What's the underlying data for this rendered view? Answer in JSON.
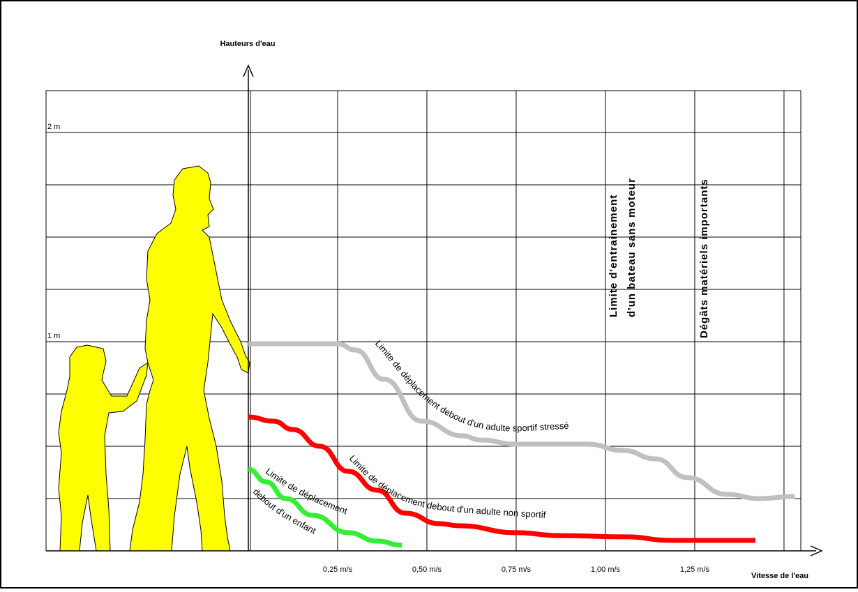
{
  "chart_data": {
    "type": "line",
    "y_label": "Hauteurs d'eau",
    "x_label": "Vitesse de l'eau",
    "xlim": [
      0,
      1.547
    ],
    "ylim": [
      0,
      2.2
    ],
    "xticks": [
      {
        "value": 0.25,
        "label": "0,25 m/s"
      },
      {
        "value": 0.5,
        "label": "0,50 m/s"
      },
      {
        "value": 0.75,
        "label": "0,75 m/s"
      },
      {
        "value": 1.0,
        "label": "1,00 m/s"
      },
      {
        "value": 1.25,
        "label": "1,25 m/s"
      }
    ],
    "yticks": [
      {
        "value": 1,
        "label": "1 m"
      },
      {
        "value": 2,
        "label": "2 m"
      }
    ],
    "xgrid": [
      0,
      0.25,
      0.5,
      0.75,
      1.0,
      1.25,
      1.5
    ],
    "ygrid": [
      0,
      0.25,
      0.5,
      0.75,
      1.0,
      1.25,
      1.5,
      1.75,
      2.0,
      2.2
    ],
    "series": [
      {
        "label_lines": [
          "Limite de déplacement debout d'un adulte sportif stressé"
        ],
        "color": "#c0c0c0",
        "x": [
          0,
          0.25,
          0.3,
          0.38,
          0.486,
          0.6,
          0.65,
          0.75,
          0.95,
          1.05,
          1.14,
          1.23,
          1.34,
          1.43,
          1.53
        ],
        "values": [
          0.99,
          0.99,
          0.96,
          0.82,
          0.62,
          0.55,
          0.53,
          0.51,
          0.51,
          0.48,
          0.44,
          0.35,
          0.27,
          0.25,
          0.26
        ]
      },
      {
        "label_lines": [
          "Limite de déplacement debout d'un adulte non sportif"
        ],
        "color": "#ff0000",
        "x": [
          0,
          0.07,
          0.125,
          0.2,
          0.28,
          0.36,
          0.44,
          0.535,
          0.59,
          0.75,
          0.87,
          1.06,
          1.18,
          1.42
        ],
        "values": [
          0.64,
          0.62,
          0.58,
          0.5,
          0.38,
          0.29,
          0.18,
          0.13,
          0.12,
          0.087,
          0.073,
          0.067,
          0.05,
          0.05
        ]
      },
      {
        "label_lines": [
          "Limite de déplacement",
          "debout d'un enfant"
        ],
        "color": "#33ee33",
        "x": [
          0,
          0.05,
          0.105,
          0.18,
          0.28,
          0.36,
          0.43
        ],
        "values": [
          0.39,
          0.33,
          0.25,
          0.17,
          0.087,
          0.047,
          0.027
        ]
      }
    ],
    "annotations": [
      "Limite d'entrainement",
      "d'un bateau sans moteur",
      "Dégâts matériels importants"
    ]
  }
}
